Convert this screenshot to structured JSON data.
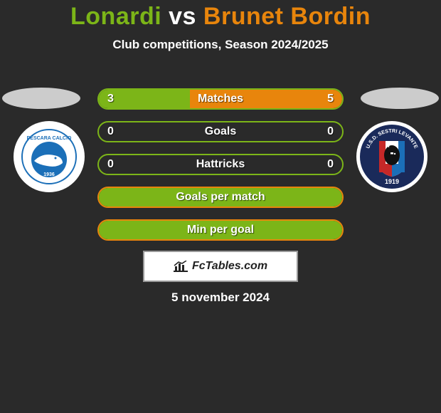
{
  "title": {
    "player1": "Lonardi",
    "vs": "vs",
    "player2": "Brunet Bordin",
    "player1_color": "#7cb518",
    "vs_color": "#ffffff",
    "player2_color": "#e8850c"
  },
  "subtitle": "Club competitions, Season 2024/2025",
  "stats": [
    {
      "label": "Matches",
      "left_val": "3",
      "right_val": "5",
      "border": "green",
      "fill_left_pct": 37.5,
      "fill_right_pct": 62.5,
      "fill_left_color": "#7cb518",
      "fill_right_color": "#e8850c"
    },
    {
      "label": "Goals",
      "left_val": "0",
      "right_val": "0",
      "border": "green",
      "fill_left_pct": 0,
      "fill_right_pct": 0,
      "fill_left_color": "#7cb518",
      "fill_right_color": "#e8850c"
    },
    {
      "label": "Hattricks",
      "left_val": "0",
      "right_val": "0",
      "border": "green",
      "fill_left_pct": 0,
      "fill_right_pct": 0,
      "fill_left_color": "#7cb518",
      "fill_right_color": "#e8850c"
    },
    {
      "label": "Goals per match",
      "left_val": "",
      "right_val": "",
      "border": "orange",
      "fill_left_pct": 100,
      "fill_right_pct": 0,
      "fill_left_color": "#7cb518",
      "fill_right_color": "#e8850c"
    },
    {
      "label": "Min per goal",
      "left_val": "",
      "right_val": "",
      "border": "orange",
      "fill_left_pct": 100,
      "fill_right_pct": 0,
      "fill_left_color": "#7cb518",
      "fill_right_color": "#e8850c"
    }
  ],
  "footer_brand": "FcTables.com",
  "date": "5 november 2024",
  "colors": {
    "background": "#2a2a2a",
    "green": "#7cb518",
    "orange": "#e8850c",
    "ellipse": "#cccccc",
    "white": "#ffffff"
  },
  "club_left": {
    "name": "Pescara Calcio",
    "primary": "#1b6fb8",
    "secondary": "#ffffff"
  },
  "club_right": {
    "name": "Sestri Levante",
    "primary": "#1a2a5a",
    "stripe1": "#c62828",
    "stripe2": "#1b6fb8",
    "face": "#111111"
  }
}
